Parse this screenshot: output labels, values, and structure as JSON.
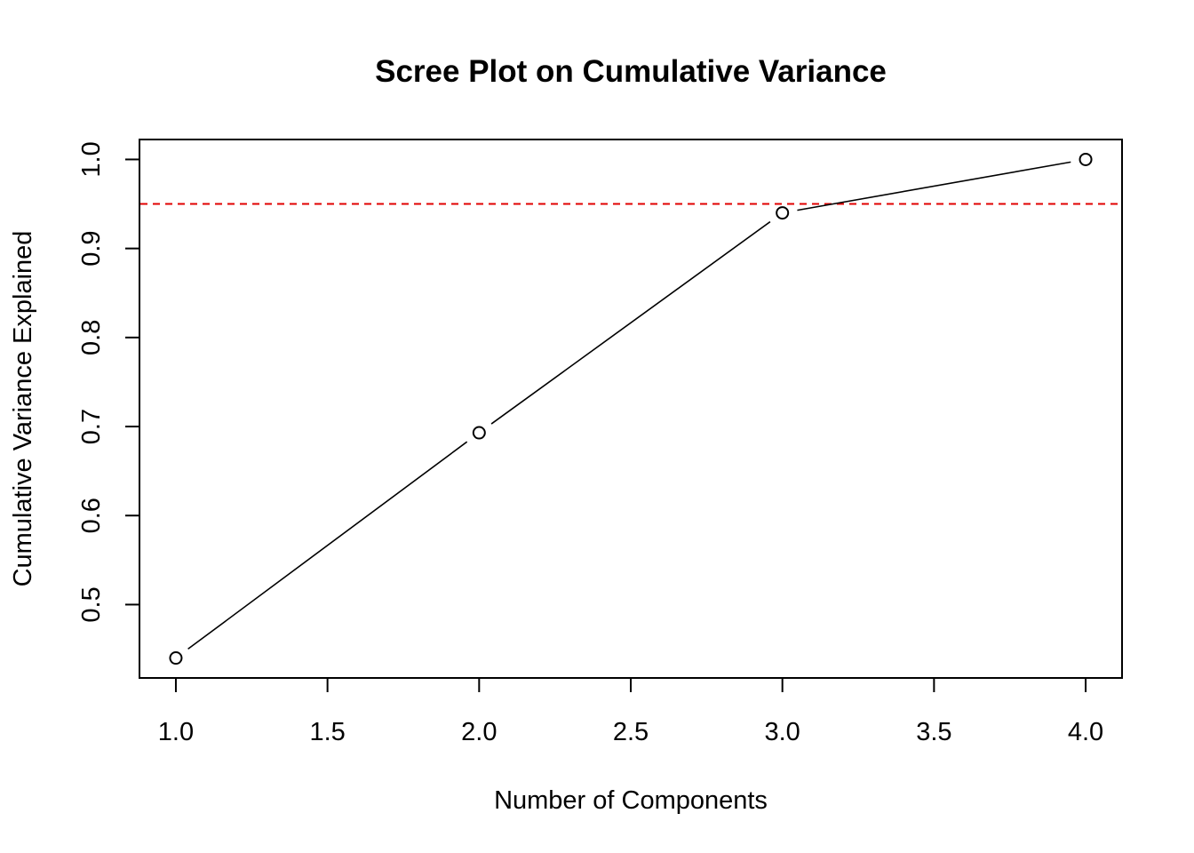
{
  "chart_data": {
    "type": "line",
    "title": "Scree Plot on Cumulative Variance",
    "xlabel": "Number of Components",
    "ylabel": "Cumulative Variance Explained",
    "x": [
      1,
      2,
      3,
      4
    ],
    "y": [
      0.44,
      0.693,
      0.94,
      1.0
    ],
    "xlim": [
      0.88,
      4.12
    ],
    "ylim": [
      0.4176,
      1.0224
    ],
    "x_ticks": [
      1.0,
      1.5,
      2.0,
      2.5,
      3.0,
      3.5,
      4.0
    ],
    "x_tick_labels": [
      "1.0",
      "1.5",
      "2.0",
      "2.5",
      "3.0",
      "3.5",
      "4.0"
    ],
    "y_ticks": [
      0.5,
      0.6,
      0.7,
      0.8,
      0.9,
      1.0
    ],
    "y_tick_labels": [
      "0.5",
      "0.6",
      "0.7",
      "0.8",
      "0.9",
      "1.0"
    ],
    "reference_line": {
      "y": 0.95,
      "color": "#e00000",
      "style": "dashed"
    },
    "marker": "open-circle",
    "line_color": "#000000",
    "grid": false,
    "legend": "none"
  }
}
